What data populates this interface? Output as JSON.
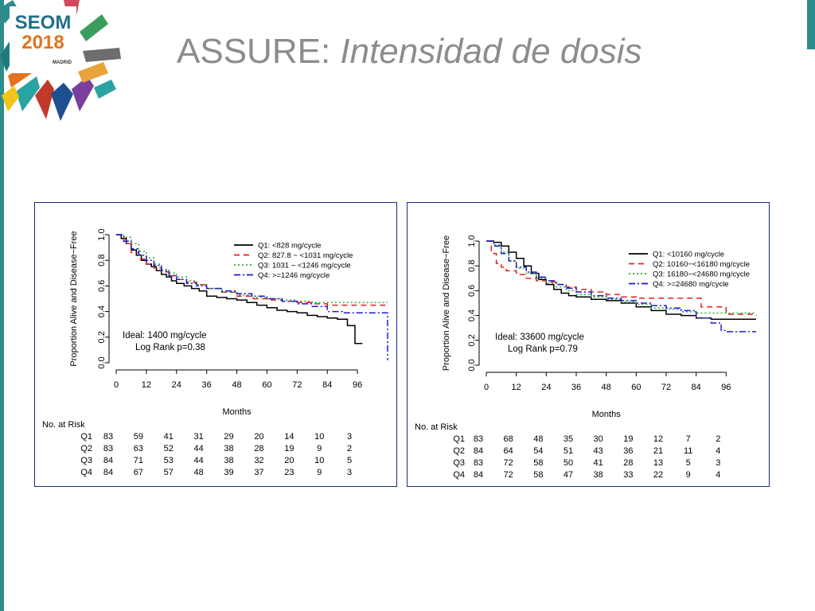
{
  "logo": {
    "line1": "SEOM",
    "line2": "2018",
    "line3": "MADRID"
  },
  "title": {
    "plain": "ASSURE: ",
    "italic": "Intensidad de dosis"
  },
  "colors": {
    "teal": "#2f8c8c",
    "panel_border": "#1a2a7a",
    "q1": "#000000",
    "q2": "#e0201b",
    "q3": "#33aa33",
    "q4": "#1a1ad0"
  },
  "chart_data": [
    {
      "type": "line",
      "ylabel": "Proportion Alive and Disease−Free",
      "xlabel": "Months",
      "xlim": [
        0,
        108
      ],
      "ylim": [
        0,
        1
      ],
      "xticks": [
        "0",
        "12",
        "24",
        "36",
        "48",
        "60",
        "72",
        "84",
        "96"
      ],
      "yticks": [
        "0.0",
        "0.2",
        "0.4",
        "0.6",
        "0.8",
        "1.0"
      ],
      "legend_position": "top-right",
      "annotation": [
        "Ideal: 1400 mg/cycle",
        "Log Rank p=0.38"
      ],
      "series": [
        {
          "name": "Q1: <828 mg/cycle",
          "color": "#000000",
          "dash": "",
          "x": [
            0,
            2,
            4,
            6,
            8,
            10,
            12,
            14,
            16,
            18,
            20,
            22,
            24,
            27,
            30,
            33,
            36,
            40,
            44,
            48,
            52,
            56,
            60,
            64,
            68,
            72,
            76,
            80,
            84,
            88,
            92,
            95,
            96,
            98
          ],
          "y": [
            1.0,
            0.97,
            0.93,
            0.88,
            0.84,
            0.8,
            0.77,
            0.75,
            0.72,
            0.69,
            0.67,
            0.64,
            0.62,
            0.6,
            0.58,
            0.56,
            0.52,
            0.51,
            0.5,
            0.49,
            0.47,
            0.45,
            0.43,
            0.41,
            0.4,
            0.39,
            0.37,
            0.36,
            0.35,
            0.34,
            0.29,
            0.15,
            0.15,
            0.15
          ]
        },
        {
          "name": "Q2: 827.8 − <1031 mg/cycle",
          "color": "#e0201b",
          "dash": "7,5",
          "x": [
            0,
            3,
            6,
            9,
            12,
            15,
            18,
            21,
            24,
            28,
            32,
            36,
            42,
            48,
            54,
            60,
            66,
            72,
            78,
            84,
            90,
            96,
            102,
            108
          ],
          "y": [
            1.0,
            0.93,
            0.86,
            0.81,
            0.77,
            0.74,
            0.71,
            0.68,
            0.65,
            0.63,
            0.61,
            0.58,
            0.55,
            0.52,
            0.5,
            0.49,
            0.48,
            0.47,
            0.46,
            0.45,
            0.45,
            0.45,
            0.45,
            0.45
          ]
        },
        {
          "name": "Q3: 1031 − <1246 mg/cycle",
          "color": "#33aa33",
          "dash": "2,3",
          "x": [
            0,
            3,
            6,
            9,
            12,
            15,
            18,
            21,
            24,
            28,
            32,
            36,
            42,
            48,
            54,
            60,
            66,
            72,
            78,
            84,
            90,
            96,
            102,
            108
          ],
          "y": [
            1.0,
            0.98,
            0.93,
            0.87,
            0.82,
            0.77,
            0.73,
            0.7,
            0.67,
            0.64,
            0.61,
            0.58,
            0.55,
            0.53,
            0.51,
            0.5,
            0.49,
            0.48,
            0.47,
            0.47,
            0.47,
            0.47,
            0.47,
            0.47
          ]
        },
        {
          "name": "Q4: >=1246 mg/cycle",
          "color": "#1a1ad0",
          "dash": "8,3,2,3",
          "x": [
            0,
            3,
            6,
            9,
            12,
            15,
            18,
            21,
            24,
            28,
            32,
            36,
            42,
            48,
            54,
            60,
            66,
            72,
            78,
            84,
            90,
            96,
            100,
            106,
            108
          ],
          "y": [
            1.0,
            0.95,
            0.89,
            0.84,
            0.8,
            0.76,
            0.72,
            0.68,
            0.65,
            0.62,
            0.6,
            0.58,
            0.56,
            0.54,
            0.52,
            0.5,
            0.48,
            0.46,
            0.44,
            0.4,
            0.39,
            0.39,
            0.39,
            0.39,
            0.02
          ]
        }
      ],
      "risk_table": {
        "label": "No. at Risk",
        "rows": [
          {
            "name": "Q1",
            "values": [
              "83",
              "59",
              "41",
              "31",
              "29",
              "20",
              "14",
              "10",
              "3"
            ]
          },
          {
            "name": "Q2",
            "values": [
              "83",
              "63",
              "52",
              "44",
              "38",
              "28",
              "19",
              "9",
              "2"
            ]
          },
          {
            "name": "Q3",
            "values": [
              "84",
              "71",
              "53",
              "44",
              "38",
              "32",
              "20",
              "10",
              "5"
            ]
          },
          {
            "name": "Q4",
            "values": [
              "84",
              "67",
              "57",
              "48",
              "39",
              "37",
              "23",
              "9",
              "3"
            ]
          }
        ]
      }
    },
    {
      "type": "line",
      "ylabel": "Proportion Alive and Disease−Free",
      "xlabel": "Months",
      "xlim": [
        0,
        108
      ],
      "ylim": [
        0,
        1
      ],
      "xticks": [
        "0",
        "12",
        "24",
        "36",
        "48",
        "60",
        "72",
        "84",
        "96"
      ],
      "yticks": [
        "0.0",
        "0.2",
        "0.4",
        "0.6",
        "0.8",
        "1.0"
      ],
      "legend_position": "top-right",
      "annotation": [
        "Ideal: 33600 mg/cycle",
        "Log Rank p=0.79"
      ],
      "series": [
        {
          "name": "Q1: <10160 mg/cycle",
          "color": "#000000",
          "dash": "",
          "x": [
            0,
            3,
            6,
            9,
            12,
            15,
            18,
            21,
            24,
            27,
            30,
            33,
            36,
            42,
            48,
            54,
            60,
            66,
            72,
            78,
            84,
            90,
            96,
            102,
            108
          ],
          "y": [
            1.0,
            0.99,
            0.96,
            0.91,
            0.86,
            0.8,
            0.74,
            0.69,
            0.65,
            0.61,
            0.58,
            0.56,
            0.55,
            0.53,
            0.52,
            0.5,
            0.47,
            0.44,
            0.41,
            0.4,
            0.38,
            0.37,
            0.37,
            0.37,
            0.37
          ]
        },
        {
          "name": "Q2: 10160−<16180 mg/cycle",
          "color": "#e0201b",
          "dash": "7,5",
          "x": [
            0,
            2,
            4,
            6,
            8,
            12,
            16,
            20,
            24,
            28,
            32,
            36,
            42,
            48,
            54,
            60,
            66,
            72,
            78,
            84,
            86,
            90,
            96,
            102,
            108
          ],
          "y": [
            1.0,
            0.9,
            0.82,
            0.79,
            0.76,
            0.73,
            0.7,
            0.68,
            0.67,
            0.65,
            0.63,
            0.61,
            0.59,
            0.57,
            0.55,
            0.54,
            0.54,
            0.54,
            0.54,
            0.54,
            0.47,
            0.47,
            0.41,
            0.41,
            0.4
          ]
        },
        {
          "name": "Q3: 16180−<24680 mg/cycle",
          "color": "#33aa33",
          "dash": "2,3",
          "x": [
            0,
            3,
            6,
            9,
            12,
            16,
            20,
            24,
            28,
            32,
            36,
            42,
            48,
            54,
            60,
            66,
            72,
            78,
            84,
            90,
            96,
            102,
            108
          ],
          "y": [
            1.0,
            0.97,
            0.91,
            0.84,
            0.78,
            0.74,
            0.7,
            0.66,
            0.63,
            0.6,
            0.57,
            0.55,
            0.53,
            0.51,
            0.49,
            0.46,
            0.45,
            0.43,
            0.42,
            0.42,
            0.42,
            0.42,
            0.42
          ]
        },
        {
          "name": "Q4: >=24680 mg/cycle",
          "color": "#1a1ad0",
          "dash": "8,3,2,3",
          "x": [
            0,
            3,
            6,
            9,
            12,
            16,
            20,
            24,
            28,
            32,
            36,
            42,
            48,
            54,
            60,
            66,
            72,
            78,
            84,
            90,
            94,
            96,
            102,
            108
          ],
          "y": [
            1.0,
            0.96,
            0.9,
            0.84,
            0.79,
            0.75,
            0.71,
            0.68,
            0.65,
            0.62,
            0.59,
            0.56,
            0.54,
            0.52,
            0.5,
            0.48,
            0.46,
            0.44,
            0.38,
            0.34,
            0.28,
            0.27,
            0.27,
            0.27
          ]
        }
      ],
      "risk_table": {
        "label": "No. at Risk",
        "rows": [
          {
            "name": "Q1",
            "values": [
              "83",
              "68",
              "48",
              "35",
              "30",
              "19",
              "12",
              "7",
              "2"
            ]
          },
          {
            "name": "Q2",
            "values": [
              "84",
              "64",
              "54",
              "51",
              "43",
              "36",
              "21",
              "11",
              "4"
            ]
          },
          {
            "name": "Q3",
            "values": [
              "83",
              "72",
              "58",
              "50",
              "41",
              "28",
              "13",
              "5",
              "3"
            ]
          },
          {
            "name": "Q4",
            "values": [
              "84",
              "72",
              "58",
              "47",
              "38",
              "33",
              "22",
              "9",
              "4"
            ]
          }
        ]
      }
    }
  ]
}
